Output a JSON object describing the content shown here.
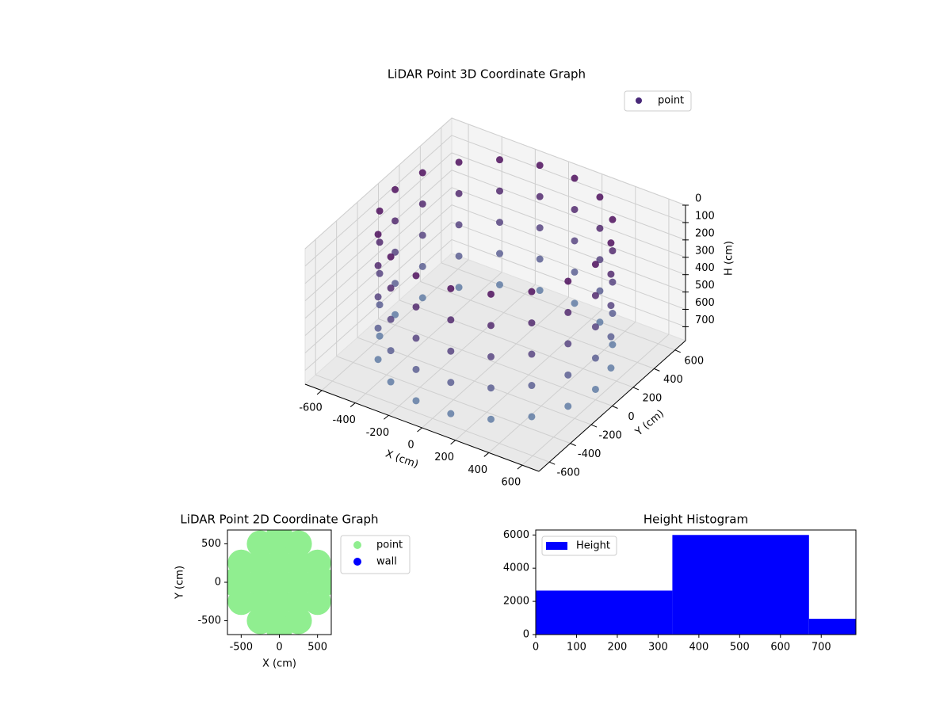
{
  "chart_data": [
    {
      "type": "scatter3d",
      "title": "LiDAR Point 3D Coordinate Graph",
      "xlabel": "X (cm)",
      "ylabel": "Y (cm)",
      "zlabel": "H (cm)",
      "xlim": [
        -700,
        700
      ],
      "ylim": [
        -700,
        700
      ],
      "zlim": [
        0,
        780
      ],
      "zinvert": true,
      "xticks": [
        -600,
        -400,
        -200,
        0,
        200,
        400,
        600
      ],
      "yticks": [
        -600,
        -400,
        -200,
        0,
        200,
        400,
        600
      ],
      "zticks": [
        0,
        100,
        200,
        300,
        400,
        500,
        600,
        700
      ],
      "grid": true,
      "legend": "upper right",
      "series": [
        {
          "name": "point",
          "color": "#482878",
          "colormap": [
            "#440154",
            "#5b7fa6"
          ],
          "x": [
            600,
            564,
            460,
            300,
            104,
            -104,
            -300,
            -460,
            -564,
            -600,
            -564,
            -460,
            -300,
            -104,
            104,
            300,
            460,
            564,
            600,
            564,
            460,
            300,
            104,
            -104,
            -300,
            -460,
            -564,
            -600,
            -564,
            -460,
            -300,
            -104,
            104,
            300,
            460,
            564,
            600,
            564,
            460,
            300,
            104,
            -104,
            -300,
            -460,
            -564,
            -600,
            -564,
            -460,
            -300,
            -104,
            104,
            300,
            460,
            564,
            600,
            564,
            460,
            300,
            104,
            -104,
            -300,
            -460,
            -564,
            -600,
            -564,
            -460,
            -300,
            -104,
            104,
            300,
            460,
            564,
            600,
            564,
            460,
            300,
            104,
            -104,
            -300,
            -460,
            -564,
            -600,
            -564,
            -460,
            -300,
            -104,
            104,
            300,
            460,
            564
          ],
          "y": [
            0,
            205,
            386,
            520,
            591,
            591,
            520,
            386,
            205,
            0,
            -205,
            -386,
            -520,
            -591,
            -591,
            -520,
            -386,
            -205,
            0,
            205,
            386,
            520,
            591,
            591,
            520,
            386,
            205,
            0,
            -205,
            -386,
            -520,
            -591,
            -591,
            -520,
            -386,
            -205,
            0,
            205,
            386,
            520,
            591,
            591,
            520,
            386,
            205,
            0,
            -205,
            -386,
            -520,
            -591,
            -591,
            -520,
            -386,
            -205,
            0,
            205,
            386,
            520,
            591,
            591,
            520,
            386,
            205,
            0,
            -205,
            -386,
            -520,
            -591,
            -591,
            -520,
            -386,
            -205,
            0,
            205,
            386,
            520,
            591,
            591,
            520,
            386,
            205,
            0,
            -205,
            -386,
            -520,
            -591,
            -591,
            -520,
            -386,
            -205
          ],
          "z": [
            0,
            0,
            0,
            0,
            0,
            0,
            0,
            0,
            0,
            0,
            0,
            0,
            0,
            0,
            0,
            0,
            0,
            0,
            180,
            180,
            180,
            180,
            180,
            180,
            180,
            180,
            180,
            180,
            180,
            180,
            180,
            180,
            180,
            180,
            180,
            180,
            360,
            360,
            360,
            360,
            360,
            360,
            360,
            360,
            360,
            360,
            360,
            360,
            360,
            360,
            360,
            360,
            360,
            360,
            540,
            540,
            540,
            540,
            540,
            540,
            540,
            540,
            540,
            540,
            540,
            540,
            540,
            540,
            540,
            540,
            540,
            540,
            720,
            720,
            720,
            720,
            720,
            720,
            720,
            720,
            720,
            720,
            720,
            720,
            720,
            720,
            720,
            720,
            720,
            720
          ]
        }
      ]
    },
    {
      "type": "scatter",
      "title": "LiDAR Point 2D Coordinate Graph",
      "xlabel": "X (cm)",
      "ylabel": "Y (cm)",
      "xlim": [
        -680,
        680
      ],
      "ylim": [
        -680,
        680
      ],
      "xticks": [
        -500,
        0,
        500
      ],
      "yticks": [
        -500,
        0,
        500
      ],
      "legend": "outside right",
      "series": [
        {
          "name": "point",
          "color": "#90ee90",
          "x": [
            -250,
            0,
            250,
            -500,
            -250,
            0,
            250,
            500,
            -600,
            -500,
            -250,
            0,
            250,
            500,
            600,
            -500,
            -250,
            0,
            250,
            500,
            -250,
            0,
            250,
            0,
            0
          ],
          "y": [
            -500,
            -500,
            -500,
            -250,
            -250,
            -250,
            -250,
            -250,
            0,
            0,
            0,
            0,
            0,
            0,
            0,
            250,
            250,
            250,
            250,
            250,
            500,
            500,
            500,
            600,
            -600
          ]
        },
        {
          "name": "wall",
          "color": "#0000ff",
          "x": [],
          "y": []
        }
      ]
    },
    {
      "type": "histogram",
      "title": "Height Histogram",
      "bins": [
        0,
        335,
        670,
        785
      ],
      "xlim": [
        0,
        785
      ],
      "ylim": [
        0,
        6300
      ],
      "xticks": [
        0,
        100,
        200,
        300,
        400,
        500,
        600,
        700
      ],
      "yticks": [
        0,
        2000,
        4000,
        6000
      ],
      "legend": "upper left",
      "series": [
        {
          "name": "Height",
          "color": "#0000ff",
          "values": [
            2650,
            6000,
            950
          ]
        }
      ]
    }
  ]
}
